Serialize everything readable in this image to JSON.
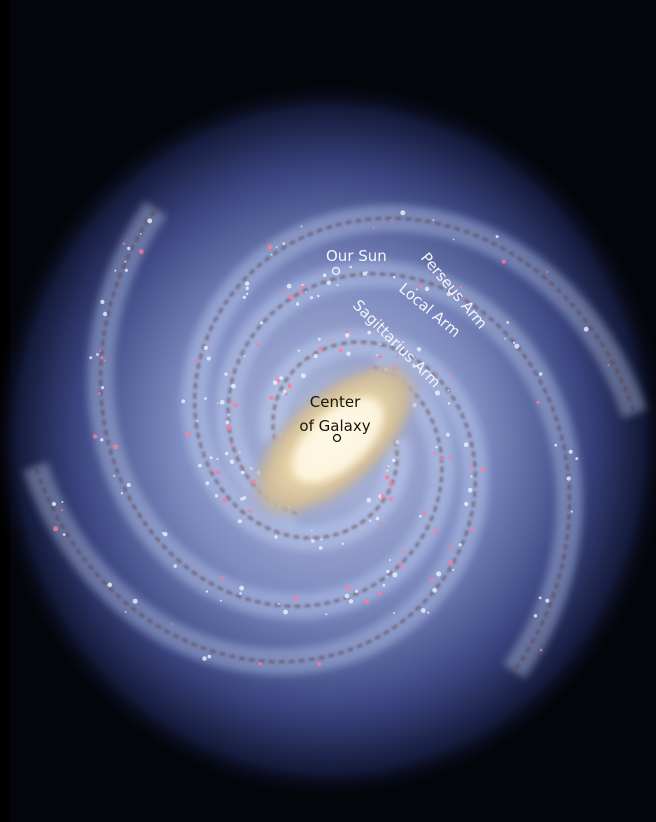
{
  "labels": {
    "sun": "Our Sun",
    "perseus": "Perseus Arm",
    "local": "Local Arm",
    "sagittarius": "Sagittarius Arm",
    "center_line1": "Center",
    "center_line2": "of Galaxy"
  }
}
